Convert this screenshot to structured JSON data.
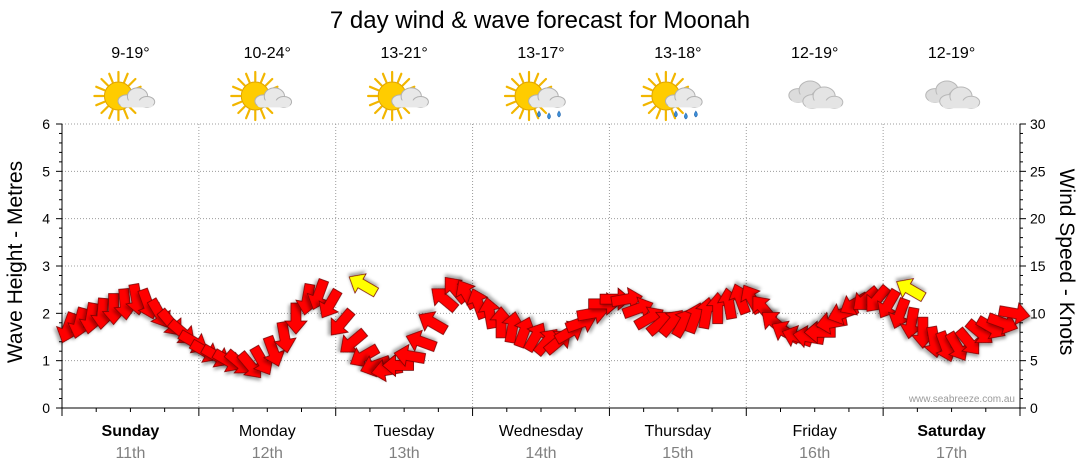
{
  "chart_data": {
    "type": "line",
    "title": "7 day wind & wave forecast for Moonah",
    "ylabel_left": "Wave Height - Metres",
    "ylabel_right": "Wind Speed - Knots",
    "ylim_left": [
      0,
      6
    ],
    "ylim_right": [
      0,
      30
    ],
    "yticks_left": [
      "0",
      "1",
      "2",
      "3",
      "4",
      "5",
      "6"
    ],
    "yticks_right": [
      "0",
      "5",
      "10",
      "15",
      "20",
      "25",
      "30"
    ],
    "grid": true,
    "watermark": "www.seabreeze.com.au",
    "days": [
      {
        "name": "Sunday",
        "date": "11th",
        "temp": "9-19°",
        "weather": "partly-cloudy",
        "bold": true
      },
      {
        "name": "Monday",
        "date": "12th",
        "temp": "10-24°",
        "weather": "partly-cloudy",
        "bold": false
      },
      {
        "name": "Tuesday",
        "date": "13th",
        "temp": "13-21°",
        "weather": "partly-cloudy",
        "bold": false
      },
      {
        "name": "Wednesday",
        "date": "14th",
        "temp": "13-17°",
        "weather": "partly-cloudy-showers",
        "bold": false
      },
      {
        "name": "Thursday",
        "date": "15th",
        "temp": "13-18°",
        "weather": "partly-cloudy-showers",
        "bold": false
      },
      {
        "name": "Friday",
        "date": "16th",
        "temp": "12-19°",
        "weather": "cloudy",
        "bold": false
      },
      {
        "name": "Saturday",
        "date": "17th",
        "temp": "12-19°",
        "weather": "cloudy",
        "bold": true
      }
    ],
    "series": [
      {
        "values_knots": [
          8.5,
          9,
          9.5,
          10,
          10.5,
          11,
          11.5,
          11,
          10,
          9,
          8,
          7,
          6,
          5.5,
          5,
          4.8,
          4.5,
          5,
          6,
          7.5,
          9.5,
          11.5,
          12,
          11,
          9,
          7,
          5.5,
          4.5,
          4,
          4.5,
          5.5,
          7,
          9,
          11.5,
          12.5,
          12,
          11,
          10,
          9,
          8.5,
          8,
          7.5,
          7,
          7,
          8,
          9,
          10,
          11,
          11.5,
          11.5,
          10.5,
          9.5,
          9,
          9,
          9,
          9.5,
          10,
          10.5,
          11,
          11.5,
          11.5,
          10.5,
          9,
          8,
          7.5,
          7.5,
          8,
          9,
          10,
          11,
          11.5,
          11.5,
          11,
          10,
          9,
          8,
          7,
          6.5,
          6.5,
          7,
          8,
          8.5,
          9,
          10
        ],
        "direction_deg": [
          20,
          15,
          10,
          5,
          0,
          355,
          350,
          340,
          330,
          320,
          310,
          300,
          300,
          300,
          300,
          310,
          320,
          330,
          340,
          350,
          0,
          10,
          20,
          30,
          40,
          50,
          60,
          70,
          80,
          90,
          100,
          110,
          120,
          130,
          140,
          150,
          160,
          170,
          180,
          190,
          200,
          210,
          220,
          230,
          240,
          250,
          260,
          270,
          270,
          260,
          250,
          240,
          230,
          220,
          210,
          200,
          190,
          180,
          170,
          160,
          150,
          140,
          130,
          120,
          110,
          100,
          90,
          80,
          70,
          60,
          50,
          40,
          30,
          20,
          10,
          0,
          350,
          340,
          330,
          320,
          310,
          300,
          290,
          280
        ]
      }
    ],
    "highlight_knots": [
      {
        "day_index": 2.2,
        "value": 13,
        "color": "#ffff00"
      },
      {
        "day_index": 6.2,
        "value": 12.5,
        "color": "#ffff00"
      }
    ]
  }
}
